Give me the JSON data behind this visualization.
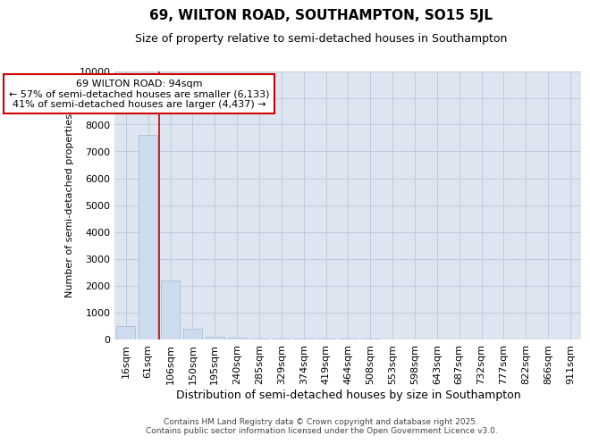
{
  "title_line1": "69, WILTON ROAD, SOUTHAMPTON, SO15 5JL",
  "title_line2": "Size of property relative to semi-detached houses in Southampton",
  "xlabel": "Distribution of semi-detached houses by size in Southampton",
  "ylabel": "Number of semi-detached properties",
  "categories": [
    "16sqm",
    "61sqm",
    "106sqm",
    "150sqm",
    "195sqm",
    "240sqm",
    "285sqm",
    "329sqm",
    "374sqm",
    "419sqm",
    "464sqm",
    "508sqm",
    "553sqm",
    "598sqm",
    "643sqm",
    "687sqm",
    "732sqm",
    "777sqm",
    "822sqm",
    "866sqm",
    "911sqm"
  ],
  "values": [
    500,
    7600,
    2200,
    380,
    100,
    50,
    8,
    3,
    2,
    1,
    1,
    1,
    0,
    0,
    0,
    0,
    0,
    0,
    0,
    0,
    0
  ],
  "bar_color": "#ccdcee",
  "bar_edge_color": "#aabfd8",
  "grid_color": "#c0ccd8",
  "bg_color": "#dde6f0",
  "red_line_x": 1.5,
  "annotation_title": "69 WILTON ROAD: 94sqm",
  "annotation_line2": "← 57% of semi-detached houses are smaller (6,133)",
  "annotation_line3": "41% of semi-detached houses are larger (4,437) →",
  "annotation_box_color": "#ffffff",
  "annotation_box_edge": "#cc0000",
  "red_line_color": "#cc0000",
  "ylim": [
    0,
    10000
  ],
  "yticks": [
    0,
    1000,
    2000,
    3000,
    4000,
    5000,
    6000,
    7000,
    8000,
    9000,
    10000
  ],
  "footer_line1": "Contains HM Land Registry data © Crown copyright and database right 2025.",
  "footer_line2": "Contains public sector information licensed under the Open Government Licence v3.0.",
  "title1_fontsize": 11,
  "title2_fontsize": 9,
  "ylabel_fontsize": 8,
  "xlabel_fontsize": 9,
  "tick_fontsize": 8,
  "footer_fontsize": 6.5,
  "ann_fontsize": 8
}
